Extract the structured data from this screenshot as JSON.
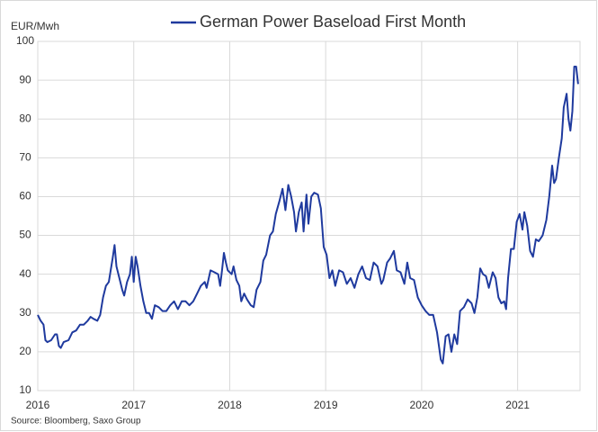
{
  "chart_data": {
    "type": "line",
    "y_label": "EUR/Mwh",
    "source": "Source: Bloomberg, Saxo Group",
    "x": [
      2016.0,
      2016.03,
      2016.06,
      2016.08,
      2016.1,
      2016.14,
      2016.18,
      2016.2,
      2016.22,
      2016.24,
      2016.27,
      2016.32,
      2016.36,
      2016.4,
      2016.44,
      2016.48,
      2016.52,
      2016.55,
      2016.58,
      2016.62,
      2016.65,
      2016.68,
      2016.71,
      2016.74,
      2016.78,
      2016.8,
      2016.82,
      2016.86,
      2016.88,
      2016.9,
      2016.93,
      2016.96,
      2016.98,
      2017.0,
      2017.02,
      2017.04,
      2017.07,
      2017.1,
      2017.13,
      2017.16,
      2017.19,
      2017.22,
      2017.26,
      2017.3,
      2017.34,
      2017.38,
      2017.42,
      2017.46,
      2017.5,
      2017.54,
      2017.58,
      2017.62,
      2017.66,
      2017.7,
      2017.74,
      2017.76,
      2017.8,
      2017.84,
      2017.88,
      2017.9,
      2017.92,
      2017.94,
      2017.96,
      2017.98,
      2018.02,
      2018.04,
      2018.07,
      2018.1,
      2018.12,
      2018.15,
      2018.18,
      2018.22,
      2018.25,
      2018.28,
      2018.32,
      2018.35,
      2018.38,
      2018.42,
      2018.45,
      2018.48,
      2018.52,
      2018.55,
      2018.58,
      2018.61,
      2018.64,
      2018.67,
      2018.69,
      2018.72,
      2018.75,
      2018.77,
      2018.8,
      2018.82,
      2018.85,
      2018.88,
      2018.92,
      2018.95,
      2018.98,
      2019.01,
      2019.04,
      2019.07,
      2019.1,
      2019.14,
      2019.18,
      2019.22,
      2019.26,
      2019.3,
      2019.34,
      2019.38,
      2019.42,
      2019.46,
      2019.5,
      2019.54,
      2019.58,
      2019.6,
      2019.64,
      2019.67,
      2019.71,
      2019.74,
      2019.78,
      2019.82,
      2019.85,
      2019.88,
      2019.92,
      2019.96,
      2020.0,
      2020.04,
      2020.08,
      2020.12,
      2020.16,
      2020.2,
      2020.22,
      2020.25,
      2020.28,
      2020.31,
      2020.34,
      2020.37,
      2020.4,
      2020.44,
      2020.48,
      2020.52,
      2020.55,
      2020.58,
      2020.61,
      2020.64,
      2020.67,
      2020.7,
      2020.74,
      2020.77,
      2020.8,
      2020.83,
      2020.86,
      2020.88,
      2020.9,
      2020.93,
      2020.96,
      2020.99,
      2021.02,
      2021.05,
      2021.07,
      2021.1,
      2021.13,
      2021.16,
      2021.19,
      2021.22,
      2021.26,
      2021.3,
      2021.33,
      2021.36,
      2021.38,
      2021.4,
      2021.43,
      2021.46,
      2021.48,
      2021.51,
      2021.53,
      2021.55,
      2021.57,
      2021.59,
      2021.61,
      2021.63
    ],
    "series": [
      {
        "name": "German Power Baseload First Month",
        "color": "#1f3a9e",
        "values": [
          29.5,
          28,
          27,
          23,
          22.5,
          23,
          24.5,
          24.5,
          21.5,
          21,
          22.5,
          23,
          25,
          25.5,
          27,
          27,
          28,
          29,
          28.5,
          28,
          29.5,
          34,
          37,
          38,
          44,
          47.5,
          42,
          38,
          36,
          34.5,
          38,
          40,
          44.5,
          38,
          44.5,
          42,
          37,
          33,
          30,
          30,
          28.5,
          32,
          31.5,
          30.5,
          30.5,
          32,
          33,
          31,
          33,
          33,
          32,
          33,
          35,
          37,
          38,
          36.5,
          41,
          40.5,
          40,
          37,
          41,
          45.5,
          43,
          41,
          40,
          42,
          38.5,
          37,
          33,
          35,
          33.5,
          32,
          31.5,
          36,
          38,
          43.5,
          45,
          50,
          51,
          55.5,
          59,
          62,
          56.5,
          63,
          60,
          56,
          51,
          56,
          58.5,
          51,
          60.5,
          53,
          60,
          61,
          60.5,
          57,
          47,
          45,
          39,
          41,
          37,
          41,
          40.5,
          37.5,
          39,
          36.5,
          40,
          42,
          39,
          38.5,
          43,
          42,
          37.5,
          38.5,
          43,
          44,
          46,
          41,
          40.5,
          37.5,
          43,
          39,
          38.5,
          34,
          32,
          30.5,
          29.5,
          29.5,
          25,
          18,
          17,
          24,
          24.5,
          20,
          24.5,
          22,
          30.5,
          31.5,
          33.5,
          32.5,
          30,
          34,
          41.5,
          40,
          39.5,
          36.5,
          40.5,
          39,
          34,
          32.5,
          33,
          31,
          39,
          46.5,
          46.5,
          53.5,
          55.5,
          51.5,
          56,
          52.5,
          46,
          44.5,
          49,
          48.5,
          50,
          54,
          60,
          68,
          63.5,
          64.5,
          70,
          75,
          83,
          86.5,
          80,
          77,
          82,
          93.5,
          93.5,
          89
        ]
      }
    ],
    "xlim": [
      2016,
      2021.65
    ],
    "xticks": [
      2016,
      2017,
      2018,
      2019,
      2020,
      2021
    ],
    "ylim": [
      10,
      100
    ],
    "yticks": [
      10,
      20,
      30,
      40,
      50,
      60,
      70,
      80,
      90,
      100
    ],
    "grid": true,
    "legend": "top"
  }
}
